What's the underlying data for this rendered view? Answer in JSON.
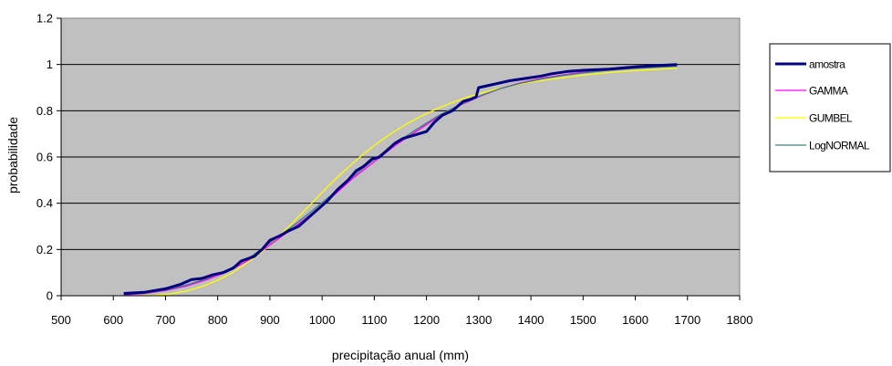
{
  "chart_data": {
    "type": "line",
    "xlabel": "precipitação anual (mm)",
    "ylabel": "probabilidade",
    "xlim": [
      500,
      1800
    ],
    "ylim": [
      0,
      1.2
    ],
    "xticks": [
      "500",
      "600",
      "700",
      "800",
      "900",
      "1000",
      "1100",
      "1200",
      "1300",
      "1400",
      "1500",
      "1600",
      "1700",
      "1800"
    ],
    "yticks": [
      "0",
      "0.2",
      "0.4",
      "0.6",
      "0.8",
      "1",
      "1.2"
    ],
    "grid": "horizontal",
    "legend_position": "right",
    "plot_background": "#c0c0c0",
    "series": [
      {
        "name": "amostra",
        "color": "#000080",
        "width": 3,
        "points": [
          [
            620,
            0.01
          ],
          [
            660,
            0.015
          ],
          [
            700,
            0.03
          ],
          [
            730,
            0.05
          ],
          [
            750,
            0.07
          ],
          [
            770,
            0.075
          ],
          [
            790,
            0.09
          ],
          [
            810,
            0.1
          ],
          [
            830,
            0.12
          ],
          [
            845,
            0.15
          ],
          [
            870,
            0.17
          ],
          [
            885,
            0.2
          ],
          [
            900,
            0.24
          ],
          [
            920,
            0.26
          ],
          [
            935,
            0.28
          ],
          [
            955,
            0.3
          ],
          [
            975,
            0.34
          ],
          [
            995,
            0.38
          ],
          [
            1010,
            0.41
          ],
          [
            1030,
            0.46
          ],
          [
            1050,
            0.5
          ],
          [
            1065,
            0.54
          ],
          [
            1080,
            0.56
          ],
          [
            1095,
            0.59
          ],
          [
            1110,
            0.6
          ],
          [
            1125,
            0.63
          ],
          [
            1140,
            0.66
          ],
          [
            1155,
            0.68
          ],
          [
            1170,
            0.69
          ],
          [
            1185,
            0.7
          ],
          [
            1200,
            0.71
          ],
          [
            1215,
            0.75
          ],
          [
            1230,
            0.78
          ],
          [
            1250,
            0.8
          ],
          [
            1270,
            0.84
          ],
          [
            1285,
            0.85
          ],
          [
            1295,
            0.86
          ],
          [
            1300,
            0.9
          ],
          [
            1320,
            0.91
          ],
          [
            1340,
            0.92
          ],
          [
            1360,
            0.93
          ],
          [
            1390,
            0.94
          ],
          [
            1420,
            0.95
          ],
          [
            1440,
            0.96
          ],
          [
            1470,
            0.97
          ],
          [
            1500,
            0.975
          ],
          [
            1550,
            0.98
          ],
          [
            1600,
            0.99
          ],
          [
            1640,
            0.995
          ],
          [
            1680,
            1.0
          ]
        ]
      },
      {
        "name": "GAMMA",
        "color": "#ff00ff",
        "width": 1.3,
        "points": [
          [
            620,
            0.003
          ],
          [
            660,
            0.01
          ],
          [
            700,
            0.022
          ],
          [
            740,
            0.042
          ],
          [
            780,
            0.07
          ],
          [
            820,
            0.105
          ],
          [
            860,
            0.155
          ],
          [
            900,
            0.22
          ],
          [
            940,
            0.285
          ],
          [
            980,
            0.355
          ],
          [
            1020,
            0.43
          ],
          [
            1060,
            0.51
          ],
          [
            1100,
            0.58
          ],
          [
            1140,
            0.65
          ],
          [
            1180,
            0.71
          ],
          [
            1220,
            0.77
          ],
          [
            1260,
            0.82
          ],
          [
            1300,
            0.86
          ],
          [
            1340,
            0.895
          ],
          [
            1380,
            0.92
          ],
          [
            1420,
            0.94
          ],
          [
            1460,
            0.955
          ],
          [
            1500,
            0.967
          ],
          [
            1550,
            0.977
          ],
          [
            1600,
            0.985
          ],
          [
            1650,
            0.99
          ],
          [
            1680,
            0.993
          ]
        ]
      },
      {
        "name": "GUMBEL",
        "color": "#ffff00",
        "width": 1.3,
        "points": [
          [
            650,
            0.0
          ],
          [
            680,
            0.002
          ],
          [
            710,
            0.008
          ],
          [
            740,
            0.02
          ],
          [
            770,
            0.04
          ],
          [
            800,
            0.067
          ],
          [
            830,
            0.102
          ],
          [
            860,
            0.148
          ],
          [
            890,
            0.2
          ],
          [
            920,
            0.262
          ],
          [
            950,
            0.33
          ],
          [
            980,
            0.4
          ],
          [
            1010,
            0.47
          ],
          [
            1040,
            0.535
          ],
          [
            1070,
            0.595
          ],
          [
            1100,
            0.65
          ],
          [
            1130,
            0.698
          ],
          [
            1160,
            0.74
          ],
          [
            1190,
            0.777
          ],
          [
            1220,
            0.809
          ],
          [
            1250,
            0.836
          ],
          [
            1280,
            0.86
          ],
          [
            1310,
            0.88
          ],
          [
            1340,
            0.897
          ],
          [
            1370,
            0.911
          ],
          [
            1400,
            0.924
          ],
          [
            1450,
            0.94
          ],
          [
            1500,
            0.954
          ],
          [
            1550,
            0.965
          ],
          [
            1600,
            0.974
          ],
          [
            1650,
            0.98
          ],
          [
            1680,
            0.984
          ]
        ]
      },
      {
        "name": "LogNORMAL",
        "color": "#408080",
        "width": 1.3,
        "points": [
          [
            620,
            0.005
          ],
          [
            660,
            0.012
          ],
          [
            700,
            0.025
          ],
          [
            740,
            0.046
          ],
          [
            780,
            0.075
          ],
          [
            820,
            0.112
          ],
          [
            860,
            0.163
          ],
          [
            900,
            0.228
          ],
          [
            940,
            0.295
          ],
          [
            980,
            0.365
          ],
          [
            1020,
            0.44
          ],
          [
            1060,
            0.518
          ],
          [
            1100,
            0.59
          ],
          [
            1140,
            0.658
          ],
          [
            1180,
            0.718
          ],
          [
            1220,
            0.775
          ],
          [
            1260,
            0.822
          ],
          [
            1300,
            0.862
          ],
          [
            1340,
            0.895
          ],
          [
            1380,
            0.918
          ],
          [
            1420,
            0.937
          ],
          [
            1460,
            0.952
          ],
          [
            1500,
            0.964
          ],
          [
            1550,
            0.975
          ],
          [
            1600,
            0.983
          ],
          [
            1650,
            0.989
          ],
          [
            1680,
            0.992
          ]
        ]
      }
    ]
  }
}
